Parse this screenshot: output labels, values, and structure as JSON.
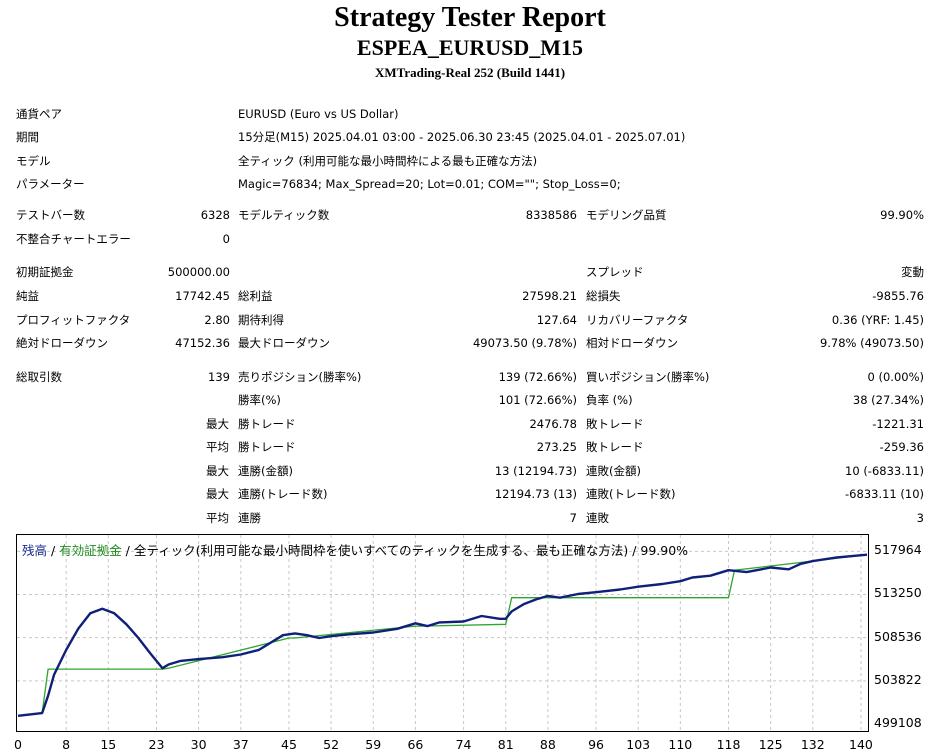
{
  "header": {
    "title": "Strategy Tester Report",
    "subtitle": "ESPEA_EURUSD_M15",
    "server": "XMTrading-Real 252 (Build 1441)"
  },
  "info": [
    {
      "label": "通貨ペア",
      "value": "EURUSD (Euro vs US Dollar)"
    },
    {
      "label": "期間",
      "value": "15分足(M15) 2025.04.01 03:00 - 2025.06.30 23:45 (2025.04.01 - 2025.07.01)"
    },
    {
      "label": "モデル",
      "value": "全ティック (利用可能な最小時間枠による最も正確な方法)"
    },
    {
      "label": "パラメーター",
      "value": "Magic=76834; Max_Spread=20; Lot=0.01; COM=\"\"; Stop_Loss=0;"
    }
  ],
  "stats": {
    "bars": {
      "label": "テストバー数",
      "value": "6328"
    },
    "ticks": {
      "label": "モデルティック数",
      "value": "8338586"
    },
    "quality": {
      "label": "モデリング品質",
      "value": "99.90%"
    },
    "errors": {
      "label": "不整合チャートエラー",
      "value": "0"
    },
    "deposit": {
      "label": "初期証拠金",
      "value": "500000.00"
    },
    "spread": {
      "label": "スプレッド",
      "value": "変動"
    },
    "net_profit": {
      "label": "純益",
      "value": "17742.45"
    },
    "gross_profit": {
      "label": "総利益",
      "value": "27598.21"
    },
    "gross_loss": {
      "label": "総損失",
      "value": "-9855.76"
    },
    "profit_factor": {
      "label": "プロフィットファクタ",
      "value": "2.80"
    },
    "expected_payoff": {
      "label": "期待利得",
      "value": "127.64"
    },
    "recovery_factor": {
      "label": "リカバリーファクタ",
      "value": "0.36 (YRF: 1.45)"
    },
    "abs_drawdown": {
      "label": "絶対ドローダウン",
      "value": "47152.36"
    },
    "max_drawdown": {
      "label": "最大ドローダウン",
      "value": "49073.50 (9.78%)"
    },
    "rel_drawdown": {
      "label": "相対ドローダウン",
      "value": "9.78% (49073.50)"
    },
    "total_trades": {
      "label": "総取引数",
      "value": "139"
    },
    "short_positions": {
      "label": "売りポジション(勝率%)",
      "value": "139 (72.66%)"
    },
    "long_positions": {
      "label": "買いポジション(勝率%)",
      "value": "0 (0.00%)"
    },
    "win_rate": {
      "label": "勝率(%)",
      "value": "101 (72.66%)"
    },
    "loss_rate": {
      "label": "負率 (%)",
      "value": "38 (27.34%)"
    },
    "largest_win": {
      "prefix": "最大",
      "label": "勝トレード",
      "value": "2476.78"
    },
    "largest_loss": {
      "label": "敗トレード",
      "value": "-1221.31"
    },
    "avg_win": {
      "prefix": "平均",
      "label": "勝トレード",
      "value": "273.25"
    },
    "avg_loss": {
      "label": "敗トレード",
      "value": "-259.36"
    },
    "max_consec_wins": {
      "prefix": "最大",
      "label": "連勝(金額)",
      "value": "13 (12194.73)"
    },
    "max_consec_losses": {
      "label": "連敗(金額)",
      "value": "10 (-6833.11)"
    },
    "max_consec_profit": {
      "prefix": "最大",
      "label": "連勝(トレード数)",
      "value": "12194.73 (13)"
    },
    "max_consec_loss": {
      "label": "連敗(トレード数)",
      "value": "-6833.11 (10)"
    },
    "avg_consec_wins": {
      "prefix": "平均",
      "label": "連勝",
      "value": "7"
    },
    "avg_consec_losses": {
      "label": "連敗",
      "value": "3"
    }
  },
  "legend": {
    "balance": "残高",
    "sep1": " / ",
    "equity": "有効証拠金",
    "rest": " / 全ティック(利用可能な最小時間枠を使いすべてのティックを生成する、最も正確な方法) / 99.90%"
  },
  "colors": {
    "balance_line": "#0f1f7a",
    "equity_line": "#2ea52e",
    "grid": "#c8c8c8"
  },
  "chart_data": {
    "type": "line",
    "x_ticks": [
      0,
      8,
      15,
      23,
      30,
      37,
      45,
      52,
      59,
      66,
      74,
      81,
      88,
      96,
      103,
      110,
      118,
      125,
      132,
      140
    ],
    "y_ticks": [
      499108,
      503822,
      508536,
      513250,
      517964
    ],
    "xlim": [
      0,
      141
    ],
    "ylim": [
      499108,
      519200
    ],
    "series": [
      {
        "name": "残高",
        "x": [
          0,
          4,
          5,
          6,
          8,
          10,
          12,
          14,
          16,
          18,
          20,
          22,
          24,
          25,
          27,
          30,
          34,
          37,
          40,
          44,
          46,
          48,
          50,
          52,
          55,
          59,
          63,
          66,
          68,
          70,
          74,
          77,
          80,
          81,
          82,
          84,
          86,
          88,
          90,
          93,
          96,
          100,
          103,
          107,
          110,
          112,
          115,
          118,
          121,
          125,
          128,
          130,
          132,
          136,
          141
        ],
        "y": [
          500000,
          500300,
          502200,
          504500,
          507200,
          509500,
          511200,
          511700,
          511200,
          510000,
          508500,
          506800,
          505200,
          505600,
          506000,
          506200,
          506400,
          506700,
          507200,
          508800,
          509000,
          508800,
          508500,
          508700,
          508900,
          509100,
          509500,
          510100,
          509800,
          510200,
          510300,
          510900,
          510600,
          510600,
          511400,
          512200,
          512700,
          513100,
          512900,
          513300,
          513500,
          513800,
          514100,
          514400,
          514700,
          515100,
          515300,
          515900,
          515700,
          516200,
          516000,
          516600,
          516900,
          517300,
          517600
        ]
      },
      {
        "name": "有効証拠金",
        "x": [
          0,
          4,
          5,
          6,
          24,
          25,
          45,
          46,
          66,
          67,
          81,
          82,
          118,
          119,
          141
        ],
        "y": [
          500000,
          500300,
          505100,
          505100,
          505100,
          505200,
          508500,
          508500,
          509800,
          509800,
          510000,
          512900,
          512900,
          515900,
          517600
        ]
      }
    ]
  }
}
